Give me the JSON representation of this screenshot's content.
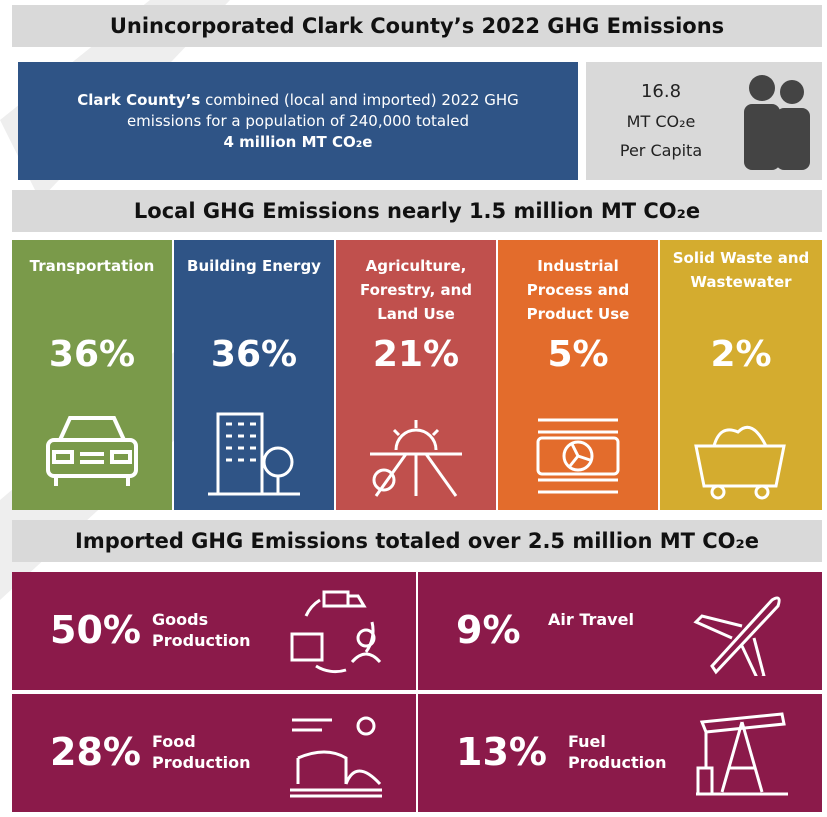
{
  "header": {
    "title": "Unincorporated Clark County’s 2022 GHG Emissions"
  },
  "summary": {
    "lead": "Clark County’s",
    "text": "combined (local and imported) 2022 GHG emissions for a population of 240,000 totaled",
    "total": "4 million MT CO₂e"
  },
  "per_capita": {
    "value": "16.8",
    "unit": "MT CO₂e",
    "label": "Per Capita"
  },
  "local": {
    "title": "Local GHG Emissions nearly 1.5 million MT CO₂e",
    "sectors": [
      {
        "name": "Transportation",
        "share": "36%"
      },
      {
        "name": "Building Energy",
        "share": "36%"
      },
      {
        "name": "Agriculture, Forestry, and Land Use",
        "share": "21%"
      },
      {
        "name": "Industrial Process and Product Use",
        "share": "5%"
      },
      {
        "name": "Solid Waste and Wastewater",
        "share": "2%"
      }
    ]
  },
  "imported": {
    "title": "Imported GHG Emissions totaled over 2.5 million MT CO₂e",
    "items": [
      {
        "share": "50%",
        "name": "Goods Production"
      },
      {
        "share": "9%",
        "name": "Air Travel"
      },
      {
        "share": "28%",
        "name": "Food Production"
      },
      {
        "share": "13%",
        "name": "Fuel Production"
      }
    ]
  }
}
